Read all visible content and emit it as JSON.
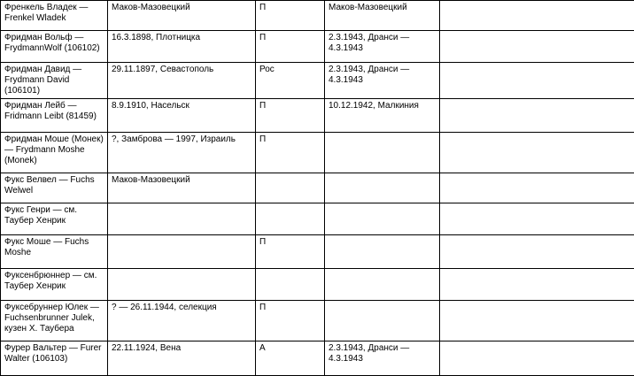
{
  "table": {
    "rows": [
      [
        "Френкель Владек — Frenkel Wladek",
        "Маков-Мазовецкий",
        "П",
        "Маков-Мазовецкий",
        null
      ],
      [
        "Фридман Вольф — FrydmannWolf (106102)",
        "16.3.1898, Плотницка",
        "П",
        "2.3.1943, Дранси — 4.3.1943",
        null
      ],
      [
        "Фридман Давид — Frydmann David (106101)",
        "29.11.1897, Севастополь",
        "Рос",
        "2.3.1943, Дранси — 4.3.1943",
        null
      ],
      [
        "Фридман Лейб — Fridmann Leibt (81459)",
        "8.9.1910, Насельск",
        "П",
        "10.12.1942, Малкиния",
        null
      ],
      [
        "Фридман Моше (Монек) — Frydmann Moshe (Monek)",
        "?, Замброва — 1997, Израиль",
        "П",
        null,
        null
      ],
      [
        "Фукс Велвел — Fuchs Welwel",
        "Маков-Мазовецкий",
        null,
        null,
        null
      ],
      [
        "Фукс Генри — см. Таубер Хенрик",
        null,
        null,
        null,
        null
      ],
      [
        "Фукс Моше — Fuchs Moshe",
        null,
        "П",
        null,
        null
      ],
      [
        "Фуксенбрюннер — см. Таубер Хенрик",
        null,
        null,
        null,
        null
      ],
      [
        "Фуксебруннер Юлек — Fuchsenbrunner Julek, кузен Х. Таубера",
        "? — 26.11.1944, селекция",
        "П",
        null,
        null
      ],
      [
        "Фурер Вальтер — Furer Walter (106103)",
        "22.11.1924, Вена",
        "А",
        "2.3.1943, Дранси — 4.3.1943",
        null
      ]
    ]
  }
}
